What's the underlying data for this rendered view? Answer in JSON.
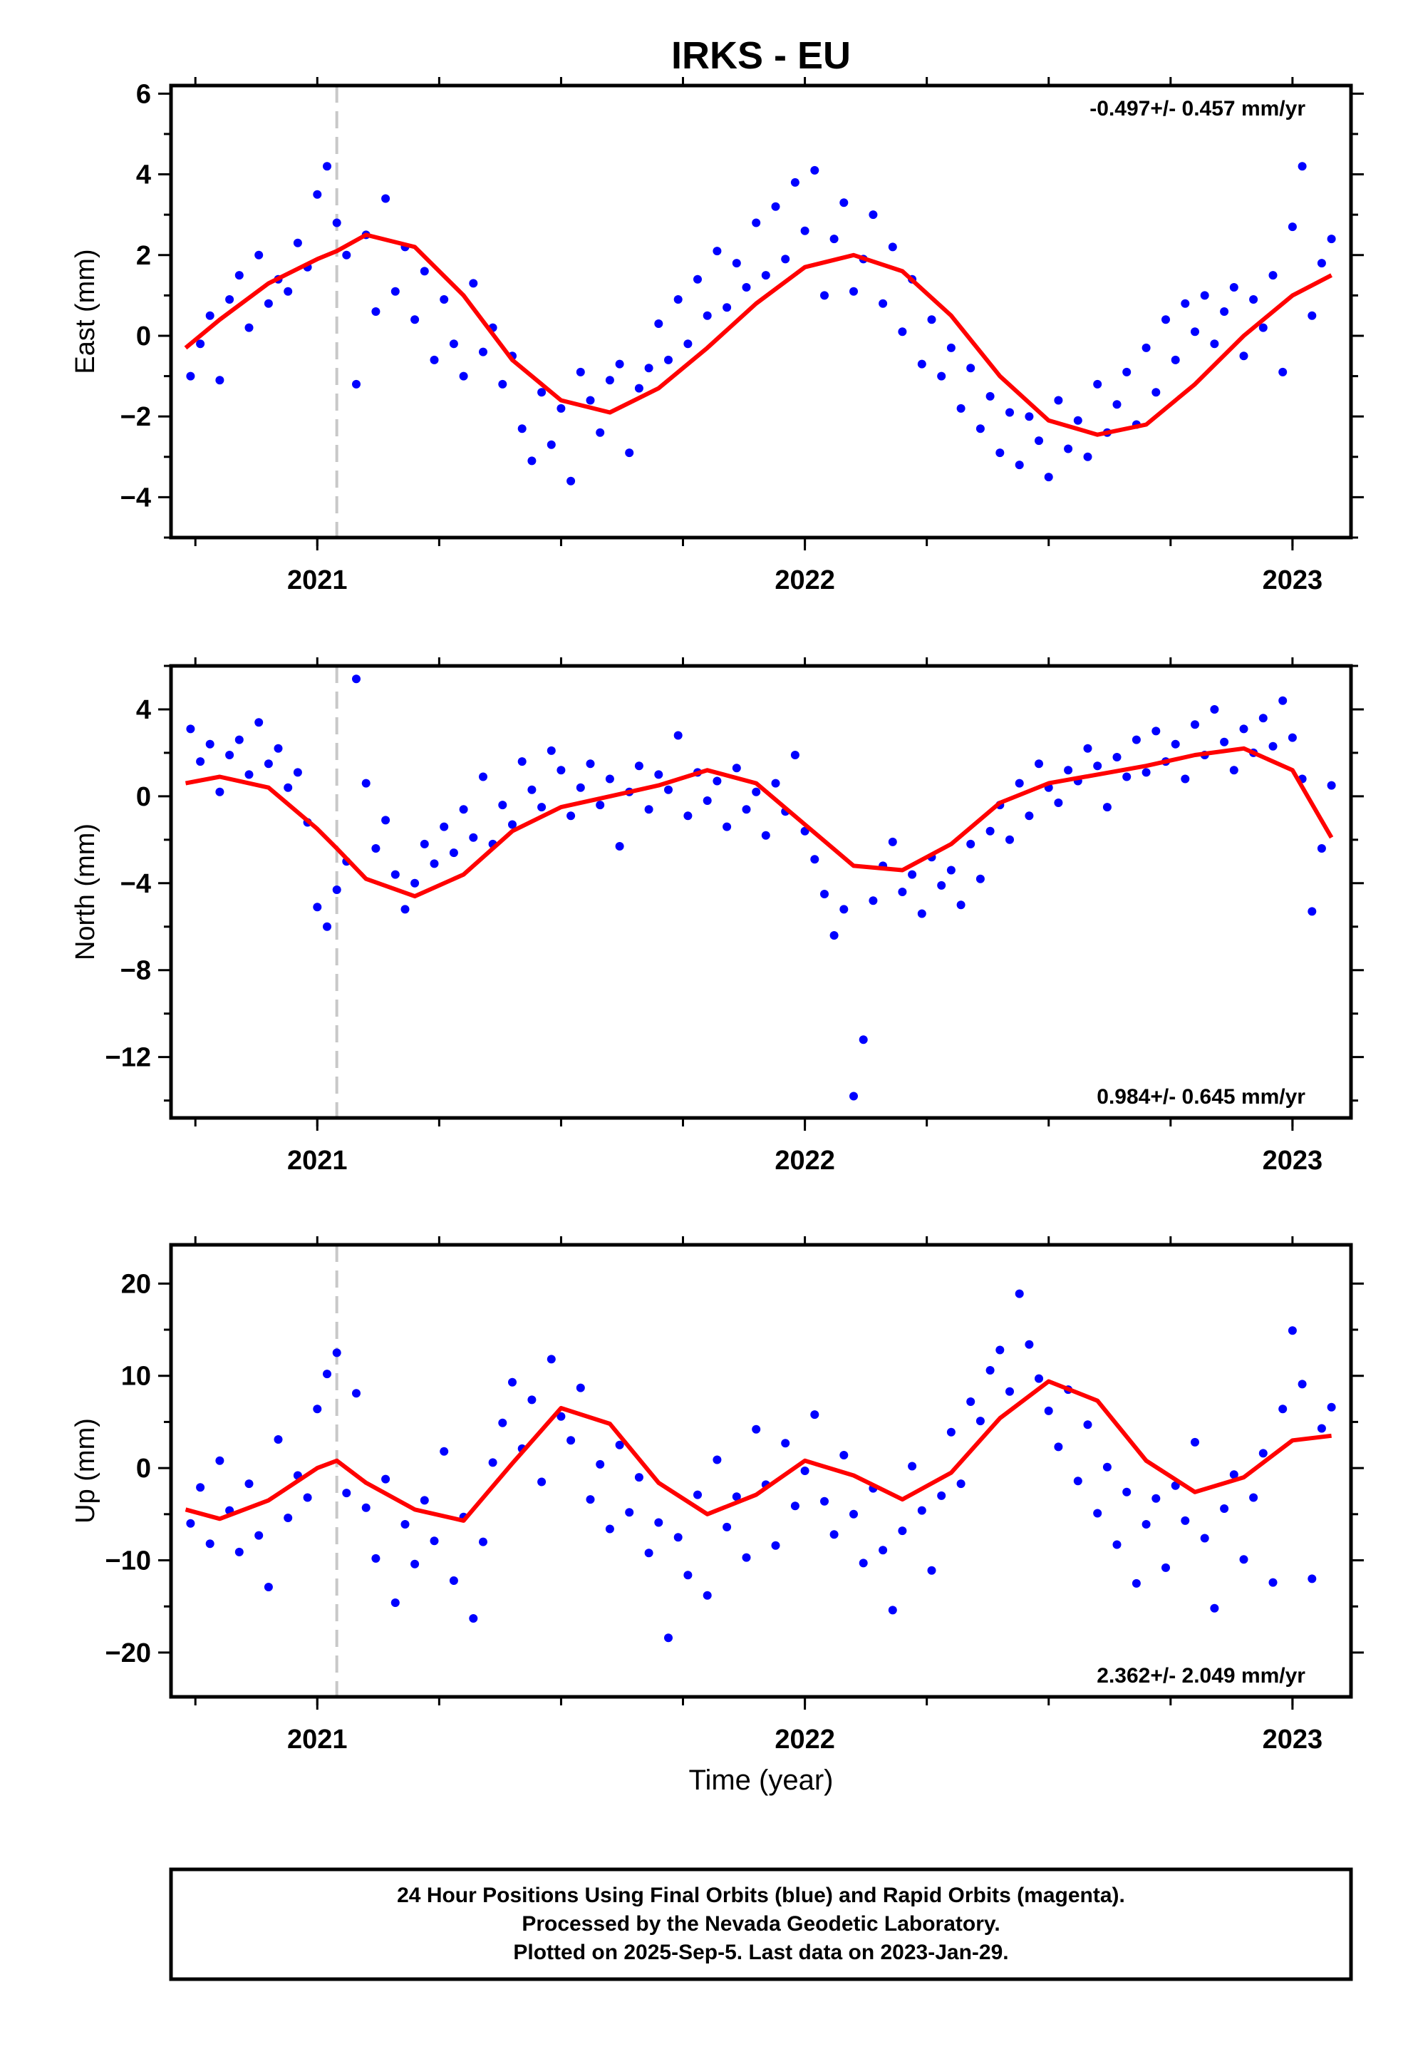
{
  "title": "IRKS - EU",
  "xlabel": "Time (year)",
  "footer": {
    "line1": "24 Hour Positions Using Final Orbits (blue) and Rapid Orbits (magenta).",
    "line2": "Processed by the Nevada Geodetic Laboratory.",
    "line3": "Plotted on 2025-Sep-5. Last data on 2023-Jan-29."
  },
  "colors": {
    "points": "#0000ff",
    "model": "#ff0000",
    "equipment_change": "#c8c8c8",
    "frame": "#000000"
  },
  "chart_data": [
    {
      "type": "scatter",
      "ylabel": "East (mm)",
      "rate_text": "-0.497+/- 0.457 mm/yr",
      "rate_position": "top-right",
      "x_ticks": [
        2021,
        2022,
        2023
      ],
      "y_ticks": [
        -4,
        -2,
        0,
        2,
        4,
        6
      ],
      "xlim": [
        2020.7,
        2023.12
      ],
      "ylim": [
        -5.0,
        6.2
      ],
      "grid": false,
      "equipment_change_x": 2021.04,
      "model": {
        "name": "model",
        "x": [
          2020.73,
          2020.8,
          2020.9,
          2021.0,
          2021.04,
          2021.1,
          2021.2,
          2021.3,
          2021.4,
          2021.5,
          2021.6,
          2021.7,
          2021.8,
          2021.9,
          2022.0,
          2022.1,
          2022.2,
          2022.3,
          2022.4,
          2022.5,
          2022.6,
          2022.7,
          2022.8,
          2022.9,
          2023.0,
          2023.08
        ],
        "y": [
          -0.3,
          0.4,
          1.3,
          1.9,
          2.1,
          2.5,
          2.2,
          1.0,
          -0.6,
          -1.6,
          -1.9,
          -1.3,
          -0.3,
          0.8,
          1.7,
          2.0,
          1.6,
          0.5,
          -1.0,
          -2.1,
          -2.45,
          -2.2,
          -1.2,
          0.0,
          1.0,
          1.5
        ]
      },
      "points": {
        "name": "points",
        "x": [
          2020.74,
          2020.76,
          2020.78,
          2020.8,
          2020.82,
          2020.84,
          2020.86,
          2020.88,
          2020.9,
          2020.92,
          2020.94,
          2020.96,
          2020.98,
          2021.0,
          2021.02,
          2021.04,
          2021.06,
          2021.08,
          2021.1,
          2021.12,
          2021.14,
          2021.16,
          2021.18,
          2021.2,
          2021.22,
          2021.24,
          2021.26,
          2021.28,
          2021.3,
          2021.32,
          2021.34,
          2021.36,
          2021.38,
          2021.4,
          2021.42,
          2021.44,
          2021.46,
          2021.48,
          2021.5,
          2021.52,
          2021.54,
          2021.56,
          2021.58,
          2021.6,
          2021.62,
          2021.64,
          2021.66,
          2021.68,
          2021.7,
          2021.72,
          2021.74,
          2021.76,
          2021.78,
          2021.8,
          2021.82,
          2021.84,
          2021.86,
          2021.88,
          2021.9,
          2021.92,
          2021.94,
          2021.96,
          2021.98,
          2022.0,
          2022.02,
          2022.04,
          2022.06,
          2022.08,
          2022.1,
          2022.12,
          2022.14,
          2022.16,
          2022.18,
          2022.2,
          2022.22,
          2022.24,
          2022.26,
          2022.28,
          2022.3,
          2022.32,
          2022.34,
          2022.36,
          2022.38,
          2022.4,
          2022.42,
          2022.44,
          2022.46,
          2022.48,
          2022.5,
          2022.52,
          2022.54,
          2022.56,
          2022.58,
          2022.6,
          2022.62,
          2022.64,
          2022.66,
          2022.68,
          2022.7,
          2022.72,
          2022.74,
          2022.76,
          2022.78,
          2022.8,
          2022.82,
          2022.84,
          2022.86,
          2022.88,
          2022.9,
          2022.92,
          2022.94,
          2022.96,
          2022.98,
          2023.0,
          2023.02,
          2023.04,
          2023.06,
          2023.08
        ],
        "y": [
          -1.0,
          -0.2,
          0.5,
          -1.1,
          0.9,
          1.5,
          0.2,
          2.0,
          0.8,
          1.4,
          1.1,
          2.3,
          1.7,
          3.5,
          4.2,
          2.8,
          2.0,
          -1.2,
          2.5,
          0.6,
          3.4,
          1.1,
          2.2,
          0.4,
          1.6,
          -0.6,
          0.9,
          -0.2,
          -1.0,
          1.3,
          -0.4,
          0.2,
          -1.2,
          -0.5,
          -2.3,
          -3.1,
          -1.4,
          -2.7,
          -1.8,
          -3.6,
          -0.9,
          -1.6,
          -2.4,
          -1.1,
          -0.7,
          -2.9,
          -1.3,
          -0.8,
          0.3,
          -0.6,
          0.9,
          -0.2,
          1.4,
          0.5,
          2.1,
          0.7,
          1.8,
          1.2,
          2.8,
          1.5,
          3.2,
          1.9,
          3.8,
          2.6,
          4.1,
          1.0,
          2.4,
          3.3,
          1.1,
          1.9,
          3.0,
          0.8,
          2.2,
          0.1,
          1.4,
          -0.7,
          0.4,
          -1.0,
          -0.3,
          -1.8,
          -0.8,
          -2.3,
          -1.5,
          -2.9,
          -1.9,
          -3.2,
          -2.0,
          -2.6,
          -3.5,
          -1.6,
          -2.8,
          -2.1,
          -3.0,
          -1.2,
          -2.4,
          -1.7,
          -0.9,
          -2.2,
          -0.3,
          -1.4,
          0.4,
          -0.6,
          0.8,
          0.1,
          1.0,
          -0.2,
          0.6,
          1.2,
          -0.5,
          0.9,
          0.2,
          1.5,
          -0.9,
          2.7,
          4.2,
          0.5,
          1.8,
          2.4
        ]
      }
    },
    {
      "type": "scatter",
      "ylabel": "North (mm)",
      "rate_text": "0.984+/- 0.645 mm/yr",
      "rate_position": "bottom-right",
      "x_ticks": [
        2021,
        2022,
        2023
      ],
      "y_ticks": [
        -12,
        -8,
        -4,
        0,
        4
      ],
      "xlim": [
        2020.7,
        2023.12
      ],
      "ylim": [
        -14.8,
        6.0
      ],
      "grid": false,
      "equipment_change_x": 2021.04,
      "model": {
        "name": "model",
        "x": [
          2020.73,
          2020.8,
          2020.9,
          2021.0,
          2021.04,
          2021.1,
          2021.2,
          2021.3,
          2021.4,
          2021.5,
          2021.6,
          2021.7,
          2021.8,
          2021.9,
          2022.0,
          2022.1,
          2022.2,
          2022.3,
          2022.4,
          2022.5,
          2022.6,
          2022.7,
          2022.8,
          2022.9,
          2023.0,
          2023.08
        ],
        "y": [
          0.6,
          0.9,
          0.4,
          -1.5,
          -2.4,
          -3.8,
          -4.6,
          -3.6,
          -1.6,
          -0.5,
          0.0,
          0.5,
          1.2,
          0.6,
          -1.3,
          -3.2,
          -3.4,
          -2.2,
          -0.3,
          0.6,
          1.0,
          1.4,
          1.9,
          2.2,
          1.2,
          -1.9
        ]
      },
      "points": {
        "name": "points",
        "x": [
          2020.74,
          2020.76,
          2020.78,
          2020.8,
          2020.82,
          2020.84,
          2020.86,
          2020.88,
          2020.9,
          2020.92,
          2020.94,
          2020.96,
          2020.98,
          2021.0,
          2021.02,
          2021.04,
          2021.06,
          2021.08,
          2021.1,
          2021.12,
          2021.14,
          2021.16,
          2021.18,
          2021.2,
          2021.22,
          2021.24,
          2021.26,
          2021.28,
          2021.3,
          2021.32,
          2021.34,
          2021.36,
          2021.38,
          2021.4,
          2021.42,
          2021.44,
          2021.46,
          2021.48,
          2021.5,
          2021.52,
          2021.54,
          2021.56,
          2021.58,
          2021.6,
          2021.62,
          2021.64,
          2021.66,
          2021.68,
          2021.7,
          2021.72,
          2021.74,
          2021.76,
          2021.78,
          2021.8,
          2021.82,
          2021.84,
          2021.86,
          2021.88,
          2021.9,
          2021.92,
          2021.94,
          2021.96,
          2021.98,
          2022.0,
          2022.02,
          2022.04,
          2022.06,
          2022.08,
          2022.1,
          2022.12,
          2022.14,
          2022.16,
          2022.18,
          2022.2,
          2022.22,
          2022.24,
          2022.26,
          2022.28,
          2022.3,
          2022.32,
          2022.34,
          2022.36,
          2022.38,
          2022.4,
          2022.42,
          2022.44,
          2022.46,
          2022.48,
          2022.5,
          2022.52,
          2022.54,
          2022.56,
          2022.58,
          2022.6,
          2022.62,
          2022.64,
          2022.66,
          2022.68,
          2022.7,
          2022.72,
          2022.74,
          2022.76,
          2022.78,
          2022.8,
          2022.82,
          2022.84,
          2022.86,
          2022.88,
          2022.9,
          2022.92,
          2022.94,
          2022.96,
          2022.98,
          2023.0,
          2023.02,
          2023.04,
          2023.06,
          2023.08
        ],
        "y": [
          3.1,
          1.6,
          2.4,
          0.2,
          1.9,
          2.6,
          1.0,
          3.4,
          1.5,
          2.2,
          0.4,
          1.1,
          -1.2,
          -5.1,
          -6.0,
          -4.3,
          -3.0,
          5.4,
          0.6,
          -2.4,
          -1.1,
          -3.6,
          -5.2,
          -4.0,
          -2.2,
          -3.1,
          -1.4,
          -2.6,
          -0.6,
          -1.9,
          0.9,
          -2.2,
          -0.4,
          -1.3,
          1.6,
          0.3,
          -0.5,
          2.1,
          1.2,
          -0.9,
          0.4,
          1.5,
          -0.4,
          0.8,
          -2.3,
          0.2,
          1.4,
          -0.6,
          1.0,
          0.3,
          2.8,
          -0.9,
          1.1,
          -0.2,
          0.7,
          -1.4,
          1.3,
          -0.6,
          0.2,
          -1.8,
          0.6,
          -0.7,
          1.9,
          -1.6,
          -2.9,
          -4.5,
          -6.4,
          -5.2,
          -13.8,
          -11.2,
          -4.8,
          -3.2,
          -2.1,
          -4.4,
          -3.6,
          -5.4,
          -2.8,
          -4.1,
          -3.4,
          -5.0,
          -2.2,
          -3.8,
          -1.6,
          -0.4,
          -2.0,
          0.6,
          -0.9,
          1.5,
          0.4,
          -0.3,
          1.2,
          0.7,
          2.2,
          1.4,
          -0.5,
          1.8,
          0.9,
          2.6,
          1.1,
          3.0,
          1.6,
          2.4,
          0.8,
          3.3,
          1.9,
          4.0,
          2.5,
          1.2,
          3.1,
          2.0,
          3.6,
          2.3,
          4.4,
          2.7,
          0.8,
          -5.3,
          -2.4,
          0.5
        ]
      }
    },
    {
      "type": "scatter",
      "ylabel": "Up (mm)",
      "rate_text": "2.362+/- 2.049 mm/yr",
      "rate_position": "bottom-right",
      "x_ticks": [
        2021,
        2022,
        2023
      ],
      "y_ticks": [
        -20,
        -10,
        0,
        10,
        20
      ],
      "xlim": [
        2020.7,
        2023.12
      ],
      "ylim": [
        -24.8,
        24.2
      ],
      "grid": false,
      "equipment_change_x": 2021.04,
      "model": {
        "name": "model",
        "x": [
          2020.73,
          2020.8,
          2020.9,
          2021.0,
          2021.04,
          2021.1,
          2021.2,
          2021.3,
          2021.4,
          2021.5,
          2021.6,
          2021.7,
          2021.8,
          2021.9,
          2022.0,
          2022.1,
          2022.2,
          2022.3,
          2022.4,
          2022.5,
          2022.6,
          2022.7,
          2022.8,
          2022.9,
          2023.0,
          2023.08
        ],
        "y": [
          -4.5,
          -5.5,
          -3.5,
          0.0,
          0.8,
          -1.6,
          -4.5,
          -5.7,
          0.5,
          6.5,
          4.8,
          -1.6,
          -5.0,
          -2.9,
          0.8,
          -0.8,
          -3.4,
          -0.5,
          5.4,
          9.4,
          7.3,
          0.8,
          -2.6,
          -1.0,
          3.0,
          3.5
        ]
      },
      "points": {
        "name": "points",
        "x": [
          2020.74,
          2020.76,
          2020.78,
          2020.8,
          2020.82,
          2020.84,
          2020.86,
          2020.88,
          2020.9,
          2020.92,
          2020.94,
          2020.96,
          2020.98,
          2021.0,
          2021.02,
          2021.04,
          2021.06,
          2021.08,
          2021.1,
          2021.12,
          2021.14,
          2021.16,
          2021.18,
          2021.2,
          2021.22,
          2021.24,
          2021.26,
          2021.28,
          2021.3,
          2021.32,
          2021.34,
          2021.36,
          2021.38,
          2021.4,
          2021.42,
          2021.44,
          2021.46,
          2021.48,
          2021.5,
          2021.52,
          2021.54,
          2021.56,
          2021.58,
          2021.6,
          2021.62,
          2021.64,
          2021.66,
          2021.68,
          2021.7,
          2021.72,
          2021.74,
          2021.76,
          2021.78,
          2021.8,
          2021.82,
          2021.84,
          2021.86,
          2021.88,
          2021.9,
          2021.92,
          2021.94,
          2021.96,
          2021.98,
          2022.0,
          2022.02,
          2022.04,
          2022.06,
          2022.08,
          2022.1,
          2022.12,
          2022.14,
          2022.16,
          2022.18,
          2022.2,
          2022.22,
          2022.24,
          2022.26,
          2022.28,
          2022.3,
          2022.32,
          2022.34,
          2022.36,
          2022.38,
          2022.4,
          2022.42,
          2022.44,
          2022.46,
          2022.48,
          2022.5,
          2022.52,
          2022.54,
          2022.56,
          2022.58,
          2022.6,
          2022.62,
          2022.64,
          2022.66,
          2022.68,
          2022.7,
          2022.72,
          2022.74,
          2022.76,
          2022.78,
          2022.8,
          2022.82,
          2022.84,
          2022.86,
          2022.88,
          2022.9,
          2022.92,
          2022.94,
          2022.96,
          2022.98,
          2023.0,
          2023.02,
          2023.04,
          2023.06,
          2023.08
        ],
        "y": [
          -6.0,
          -2.1,
          -8.2,
          0.8,
          -4.6,
          -9.1,
          -1.7,
          -7.3,
          -12.9,
          3.1,
          -5.4,
          -0.8,
          -3.2,
          6.4,
          10.2,
          12.5,
          -2.7,
          8.1,
          -4.3,
          -9.8,
          -1.2,
          -14.6,
          -6.1,
          -10.4,
          -3.5,
          -7.9,
          1.8,
          -12.2,
          -5.3,
          -16.3,
          -8.0,
          0.6,
          4.9,
          9.3,
          2.1,
          7.4,
          -1.5,
          11.8,
          5.6,
          3.0,
          8.7,
          -3.4,
          0.4,
          -6.6,
          2.5,
          -4.8,
          -1.0,
          -9.2,
          -5.9,
          -18.4,
          -7.5,
          -11.6,
          -2.9,
          -13.8,
          0.9,
          -6.4,
          -3.1,
          -9.7,
          4.2,
          -1.8,
          -8.4,
          2.7,
          -4.1,
          -0.3,
          5.8,
          -3.6,
          -7.2,
          1.4,
          -5.0,
          -10.3,
          -2.2,
          -8.9,
          -15.4,
          -6.8,
          0.2,
          -4.6,
          -11.1,
          -3.0,
          3.9,
          -1.7,
          7.2,
          5.1,
          10.6,
          12.8,
          8.3,
          18.9,
          13.4,
          9.7,
          6.2,
          2.3,
          8.5,
          -1.4,
          4.7,
          -4.9,
          0.1,
          -8.3,
          -2.6,
          -12.5,
          -6.1,
          -3.3,
          -10.8,
          -1.9,
          -5.7,
          2.8,
          -7.6,
          -15.2,
          -4.4,
          -0.7,
          -9.9,
          -3.2,
          1.6,
          -12.4,
          6.4,
          14.9,
          9.1,
          -12.0,
          4.3,
          6.6
        ]
      }
    }
  ]
}
